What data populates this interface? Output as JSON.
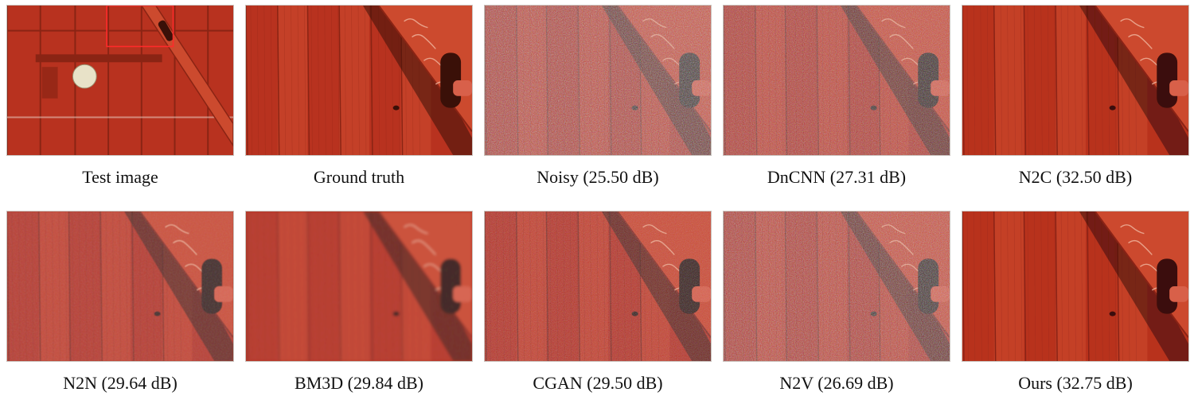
{
  "panels": [
    {
      "id": "test-image",
      "label": "Test image",
      "kind": "full"
    },
    {
      "id": "ground-truth",
      "label": "Ground truth",
      "kind": "crop",
      "noise": 0.0,
      "blur": 0.0
    },
    {
      "id": "noisy",
      "label": "Noisy (25.50 dB)",
      "kind": "crop",
      "noise": 1.0,
      "blur": 0.0,
      "psnr_db": 25.5
    },
    {
      "id": "dncnn",
      "label": "DnCNN (27.31 dB)",
      "kind": "crop",
      "noise": 0.75,
      "blur": 0.0,
      "psnr_db": 27.31
    },
    {
      "id": "n2c",
      "label": "N2C (32.50 dB)",
      "kind": "crop",
      "noise": 0.0,
      "blur": 0.3,
      "psnr_db": 32.5
    },
    {
      "id": "n2n",
      "label": "N2N (29.64 dB)",
      "kind": "crop",
      "noise": 0.3,
      "blur": 0.6,
      "psnr_db": 29.64
    },
    {
      "id": "bm3d",
      "label": "BM3D (29.84 dB)",
      "kind": "crop",
      "noise": 0.15,
      "blur": 1.6,
      "psnr_db": 29.84
    },
    {
      "id": "cgan",
      "label": "CGAN (29.50 dB)",
      "kind": "crop",
      "noise": 0.35,
      "blur": 0.3,
      "psnr_db": 29.5
    },
    {
      "id": "n2v",
      "label": "N2V (26.69 dB)",
      "kind": "crop",
      "noise": 0.85,
      "blur": 0.0,
      "psnr_db": 26.69
    },
    {
      "id": "ours",
      "label": "Ours (32.75 dB)",
      "kind": "crop",
      "noise": 0.0,
      "blur": 0.25,
      "psnr_db": 32.75
    }
  ],
  "colors": {
    "door_red": "#b8321f",
    "door_red_light": "#cc4a2e",
    "door_red_dark": "#8a2414",
    "shadow": "#3a1008",
    "highlight": "#f0b7a0",
    "crop_box": "#ff2a2a",
    "knob": "#e8e2c8"
  }
}
